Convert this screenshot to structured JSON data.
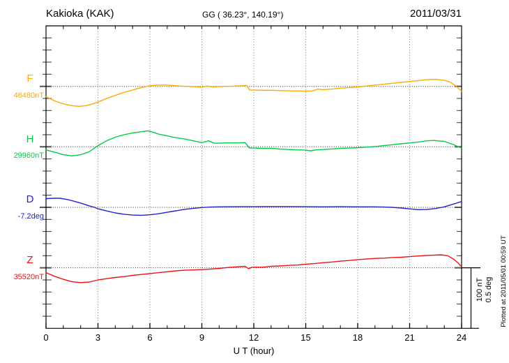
{
  "header": {
    "station": "Kakioka (KAK)",
    "coords": "GG ( 36.23°, 140.19°)",
    "date": "2011/03/31"
  },
  "axis": {
    "x_title": "U T (hour)"
  },
  "scale_bar": {
    "line1": "100 nT",
    "line2": "0.5 deg"
  },
  "footer": {
    "plotted_at": "Plotted at 2011/05/01 00:59 UT"
  },
  "chart_data": {
    "type": "line",
    "title": "Kakioka (KAK) magnetogram 2011/03/31",
    "x": {
      "min": 0,
      "max": 24,
      "label": "U T (hour)",
      "major_tick_hours": [
        0,
        3,
        6,
        9,
        12,
        15,
        18,
        21,
        24
      ],
      "tick_labels": [
        "0",
        "3",
        "6",
        "9",
        "12",
        "15",
        "18",
        "21",
        "24"
      ],
      "minor_tick_step": 1,
      "grid_hours": [
        3,
        6,
        9,
        12,
        15,
        18,
        21
      ]
    },
    "y": {
      "division_px_note": "one vertical division equals 100 nT (F,H,Z) or 0.5 deg (D)",
      "minor_ticks_per_division": 5,
      "grid": "dotted-baselines"
    },
    "series": [
      {
        "id": "F",
        "label": "F",
        "baseline_label": "46480nT",
        "baseline_value": 46480,
        "unit": "nT",
        "division": 100,
        "color": "#ffaa00",
        "points_are_offsets_from_baseline": true,
        "points": [
          [
            0,
            -17
          ],
          [
            0.5,
            -24
          ],
          [
            1,
            -29
          ],
          [
            1.5,
            -32
          ],
          [
            1.9,
            -33
          ],
          [
            2.3,
            -32
          ],
          [
            2.7,
            -29
          ],
          [
            3,
            -26
          ],
          [
            3.5,
            -20
          ],
          [
            4,
            -15
          ],
          [
            4.5,
            -10
          ],
          [
            5,
            -6
          ],
          [
            5.5,
            -2
          ],
          [
            6,
            1
          ],
          [
            6.5,
            2
          ],
          [
            7,
            2
          ],
          [
            7.5,
            1
          ],
          [
            8,
            0
          ],
          [
            8.5,
            -0.5
          ],
          [
            9,
            -1.5
          ],
          [
            9.3,
            0.5
          ],
          [
            9.6,
            -1
          ],
          [
            10,
            -0.5
          ],
          [
            10.5,
            0
          ],
          [
            11,
            0.5
          ],
          [
            11.4,
            1
          ],
          [
            11.6,
            1.5
          ],
          [
            11.75,
            -6
          ],
          [
            12,
            -6
          ],
          [
            12.5,
            -6.5
          ],
          [
            13,
            -6.5
          ],
          [
            13.5,
            -7
          ],
          [
            14,
            -7.5
          ],
          [
            14.5,
            -7.5
          ],
          [
            15,
            -8
          ],
          [
            15.4,
            -7.5
          ],
          [
            15.7,
            -4.5
          ],
          [
            16,
            -5.5
          ],
          [
            16.5,
            -4.5
          ],
          [
            17,
            -3
          ],
          [
            17.5,
            -2
          ],
          [
            18,
            -1
          ],
          [
            18.5,
            0.5
          ],
          [
            19,
            2
          ],
          [
            19.5,
            3.5
          ],
          [
            20,
            5
          ],
          [
            20.5,
            6.5
          ],
          [
            21,
            8
          ],
          [
            21.5,
            9.5
          ],
          [
            22,
            11
          ],
          [
            22.5,
            11.5
          ],
          [
            23,
            10
          ],
          [
            23.3,
            7.5
          ],
          [
            23.6,
            2
          ],
          [
            24,
            -8
          ]
        ]
      },
      {
        "id": "H",
        "label": "H",
        "baseline_label": "29960nT",
        "baseline_value": 29960,
        "unit": "nT",
        "division": 100,
        "color": "#00cc44",
        "points_are_offsets_from_baseline": true,
        "points": [
          [
            0,
            -5
          ],
          [
            0.5,
            -9
          ],
          [
            1,
            -13
          ],
          [
            1.5,
            -15
          ],
          [
            2,
            -13
          ],
          [
            2.5,
            -8
          ],
          [
            3,
            2
          ],
          [
            3.5,
            10
          ],
          [
            4,
            16
          ],
          [
            4.5,
            20
          ],
          [
            5,
            23
          ],
          [
            5.5,
            25
          ],
          [
            5.9,
            26.5
          ],
          [
            6.1,
            25
          ],
          [
            6.5,
            21
          ],
          [
            7,
            18
          ],
          [
            7.5,
            15
          ],
          [
            8,
            13
          ],
          [
            8.5,
            10
          ],
          [
            9,
            7
          ],
          [
            9.4,
            10
          ],
          [
            9.7,
            6
          ],
          [
            10,
            6
          ],
          [
            10.5,
            6.5
          ],
          [
            11,
            6.5
          ],
          [
            11.5,
            7
          ],
          [
            11.75,
            -2
          ],
          [
            12,
            -2
          ],
          [
            12.5,
            -2.5
          ],
          [
            13,
            -2.5
          ],
          [
            13.5,
            -3.5
          ],
          [
            14,
            -4.5
          ],
          [
            14.5,
            -5
          ],
          [
            15,
            -5.5
          ],
          [
            15.3,
            -6.5
          ],
          [
            15.6,
            -5
          ],
          [
            16,
            -4.5
          ],
          [
            16.5,
            -3.5
          ],
          [
            17,
            -2.5
          ],
          [
            17.5,
            -2
          ],
          [
            18,
            -1.5
          ],
          [
            18.5,
            -0.5
          ],
          [
            19,
            0.5
          ],
          [
            19.5,
            2
          ],
          [
            20,
            3.5
          ],
          [
            20.5,
            5
          ],
          [
            21,
            6.5
          ],
          [
            21.5,
            8
          ],
          [
            22,
            10
          ],
          [
            22.4,
            10.5
          ],
          [
            23,
            9
          ],
          [
            23.5,
            4
          ],
          [
            24,
            -2
          ]
        ]
      },
      {
        "id": "D",
        "label": "D",
        "baseline_label": "-7.2deg",
        "baseline_value": -7.2,
        "unit": "deg",
        "division": 0.5,
        "color": "#2222cc",
        "points_are_offsets_from_baseline": true,
        "points": [
          [
            0,
            0.072
          ],
          [
            0.5,
            0.075
          ],
          [
            0.8,
            0.075
          ],
          [
            1.2,
            0.065
          ],
          [
            1.5,
            0.055
          ],
          [
            2,
            0.035
          ],
          [
            2.5,
            0.012
          ],
          [
            2.8,
            0
          ],
          [
            3,
            -0.012
          ],
          [
            3.5,
            -0.03
          ],
          [
            4,
            -0.046
          ],
          [
            4.5,
            -0.057
          ],
          [
            5,
            -0.064
          ],
          [
            5.5,
            -0.066
          ],
          [
            6,
            -0.062
          ],
          [
            6.5,
            -0.053
          ],
          [
            7,
            -0.041
          ],
          [
            7.5,
            -0.029
          ],
          [
            8,
            -0.017
          ],
          [
            8.5,
            -0.008
          ],
          [
            9,
            -0.002
          ],
          [
            9.5,
            0.002
          ],
          [
            10,
            0.004
          ],
          [
            11,
            0.005
          ],
          [
            12,
            0.005
          ],
          [
            13,
            0.006
          ],
          [
            14,
            0.006
          ],
          [
            15,
            0.005
          ],
          [
            16,
            0.004
          ],
          [
            17,
            0.005
          ],
          [
            18,
            0.004
          ],
          [
            19,
            0.004
          ],
          [
            19.5,
            0.002
          ],
          [
            20,
            0
          ],
          [
            20.5,
            -0.006
          ],
          [
            21,
            -0.013
          ],
          [
            21.5,
            -0.019
          ],
          [
            22,
            -0.018
          ],
          [
            22.5,
            -0.01
          ],
          [
            23,
            0.004
          ],
          [
            23.5,
            0.025
          ],
          [
            24,
            0.048
          ]
        ]
      },
      {
        "id": "Z",
        "label": "Z",
        "baseline_label": "35520nT",
        "baseline_value": 35520,
        "unit": "nT",
        "division": 100,
        "color": "#ee1111",
        "points_are_offsets_from_baseline": true,
        "points": [
          [
            0,
            -8
          ],
          [
            0.5,
            -14
          ],
          [
            1,
            -19
          ],
          [
            1.5,
            -23
          ],
          [
            2,
            -24.5
          ],
          [
            2.5,
            -23.5
          ],
          [
            3,
            -20
          ],
          [
            3.5,
            -18
          ],
          [
            4,
            -16
          ],
          [
            4.5,
            -14.5
          ],
          [
            5,
            -12.5
          ],
          [
            5.5,
            -11
          ],
          [
            6,
            -9.5
          ],
          [
            6.5,
            -8
          ],
          [
            7,
            -6.5
          ],
          [
            7.5,
            -5
          ],
          [
            8,
            -4
          ],
          [
            8.5,
            -3.5
          ],
          [
            9,
            -3
          ],
          [
            9.5,
            -2
          ],
          [
            10,
            -1
          ],
          [
            10.5,
            0.5
          ],
          [
            11,
            1.5
          ],
          [
            11.5,
            2.5
          ],
          [
            11.7,
            -1.5
          ],
          [
            11.9,
            1
          ],
          [
            12.5,
            1
          ],
          [
            13,
            2.5
          ],
          [
            13.5,
            3
          ],
          [
            14,
            4
          ],
          [
            14.5,
            4.5
          ],
          [
            15,
            6
          ],
          [
            15.5,
            7
          ],
          [
            16,
            8.5
          ],
          [
            16.5,
            9.5
          ],
          [
            17,
            11
          ],
          [
            17.5,
            12
          ],
          [
            18,
            13.5
          ],
          [
            18.5,
            14.5
          ],
          [
            19,
            15.5
          ],
          [
            19.5,
            16
          ],
          [
            20,
            17
          ],
          [
            20.5,
            17.5
          ],
          [
            21,
            18.5
          ],
          [
            21.5,
            19.5
          ],
          [
            22,
            20.5
          ],
          [
            22.8,
            21.5
          ],
          [
            23.2,
            20
          ],
          [
            23.5,
            15
          ],
          [
            23.8,
            8
          ],
          [
            24,
            1.5
          ]
        ]
      }
    ]
  }
}
